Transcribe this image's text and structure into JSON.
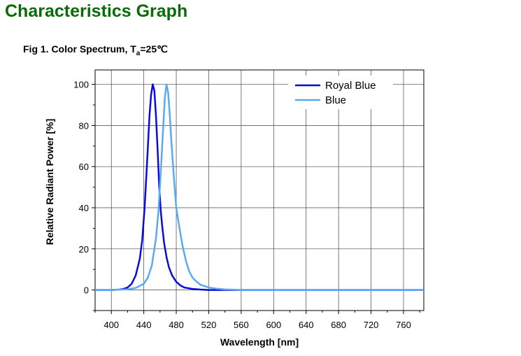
{
  "page": {
    "title": "Characteristics Graph",
    "figure_caption_prefix": "Fig 1. Color Spectrum, T",
    "figure_caption_sub": "a",
    "figure_caption_suffix": "=25℃"
  },
  "colors": {
    "title": "#0b6b0b",
    "royal_blue": "#0a0adc",
    "blue": "#5aaaf0",
    "grid": "#444444"
  },
  "chart_data": {
    "type": "line",
    "title": "",
    "xlabel": "Wavelength [nm]",
    "ylabel": "Relative Radiant Power [%]",
    "xlim": [
      380,
      785
    ],
    "ylim": [
      -10,
      107
    ],
    "xticks": [
      400,
      440,
      480,
      520,
      560,
      600,
      640,
      680,
      720,
      760
    ],
    "yticks": [
      0,
      20,
      40,
      60,
      80,
      100
    ],
    "grid": true,
    "legend_position": "top-right",
    "series": [
      {
        "name": "Royal Blue",
        "color": "#0a0adc",
        "x": [
          380,
          400,
          410,
          415,
          420,
          425,
          430,
          435,
          438,
          441,
          444,
          447,
          449,
          451,
          453,
          455,
          457,
          459,
          461,
          463,
          465,
          468,
          471,
          475,
          480,
          485,
          490,
          500,
          510,
          520,
          540,
          560,
          600,
          640,
          680,
          720,
          760,
          785
        ],
        "y": [
          0,
          0,
          0.2,
          0.5,
          1.2,
          3,
          7,
          15,
          24,
          40,
          62,
          85,
          95,
          100,
          97,
          85,
          68,
          50,
          38,
          30,
          23,
          16,
          11,
          7,
          4,
          2.2,
          1.2,
          0.5,
          0.2,
          0,
          0,
          0,
          0,
          0,
          0,
          0,
          0,
          0
        ]
      },
      {
        "name": "Blue",
        "color": "#5aaaf0",
        "x": [
          380,
          400,
          420,
          430,
          440,
          445,
          450,
          455,
          458,
          461,
          464,
          466,
          468,
          470,
          472,
          474,
          477,
          480,
          484,
          488,
          492,
          496,
          500,
          505,
          510,
          520,
          530,
          540,
          560,
          600,
          640,
          680,
          720,
          760,
          785
        ],
        "y": [
          0,
          0,
          0.3,
          1,
          3,
          6,
          12,
          25,
          38,
          58,
          80,
          94,
          100,
          96,
          85,
          72,
          55,
          40,
          30,
          21,
          14,
          9,
          6,
          4,
          2.5,
          1.2,
          0.6,
          0.3,
          0,
          0,
          0,
          0,
          0,
          0,
          0
        ]
      }
    ]
  }
}
